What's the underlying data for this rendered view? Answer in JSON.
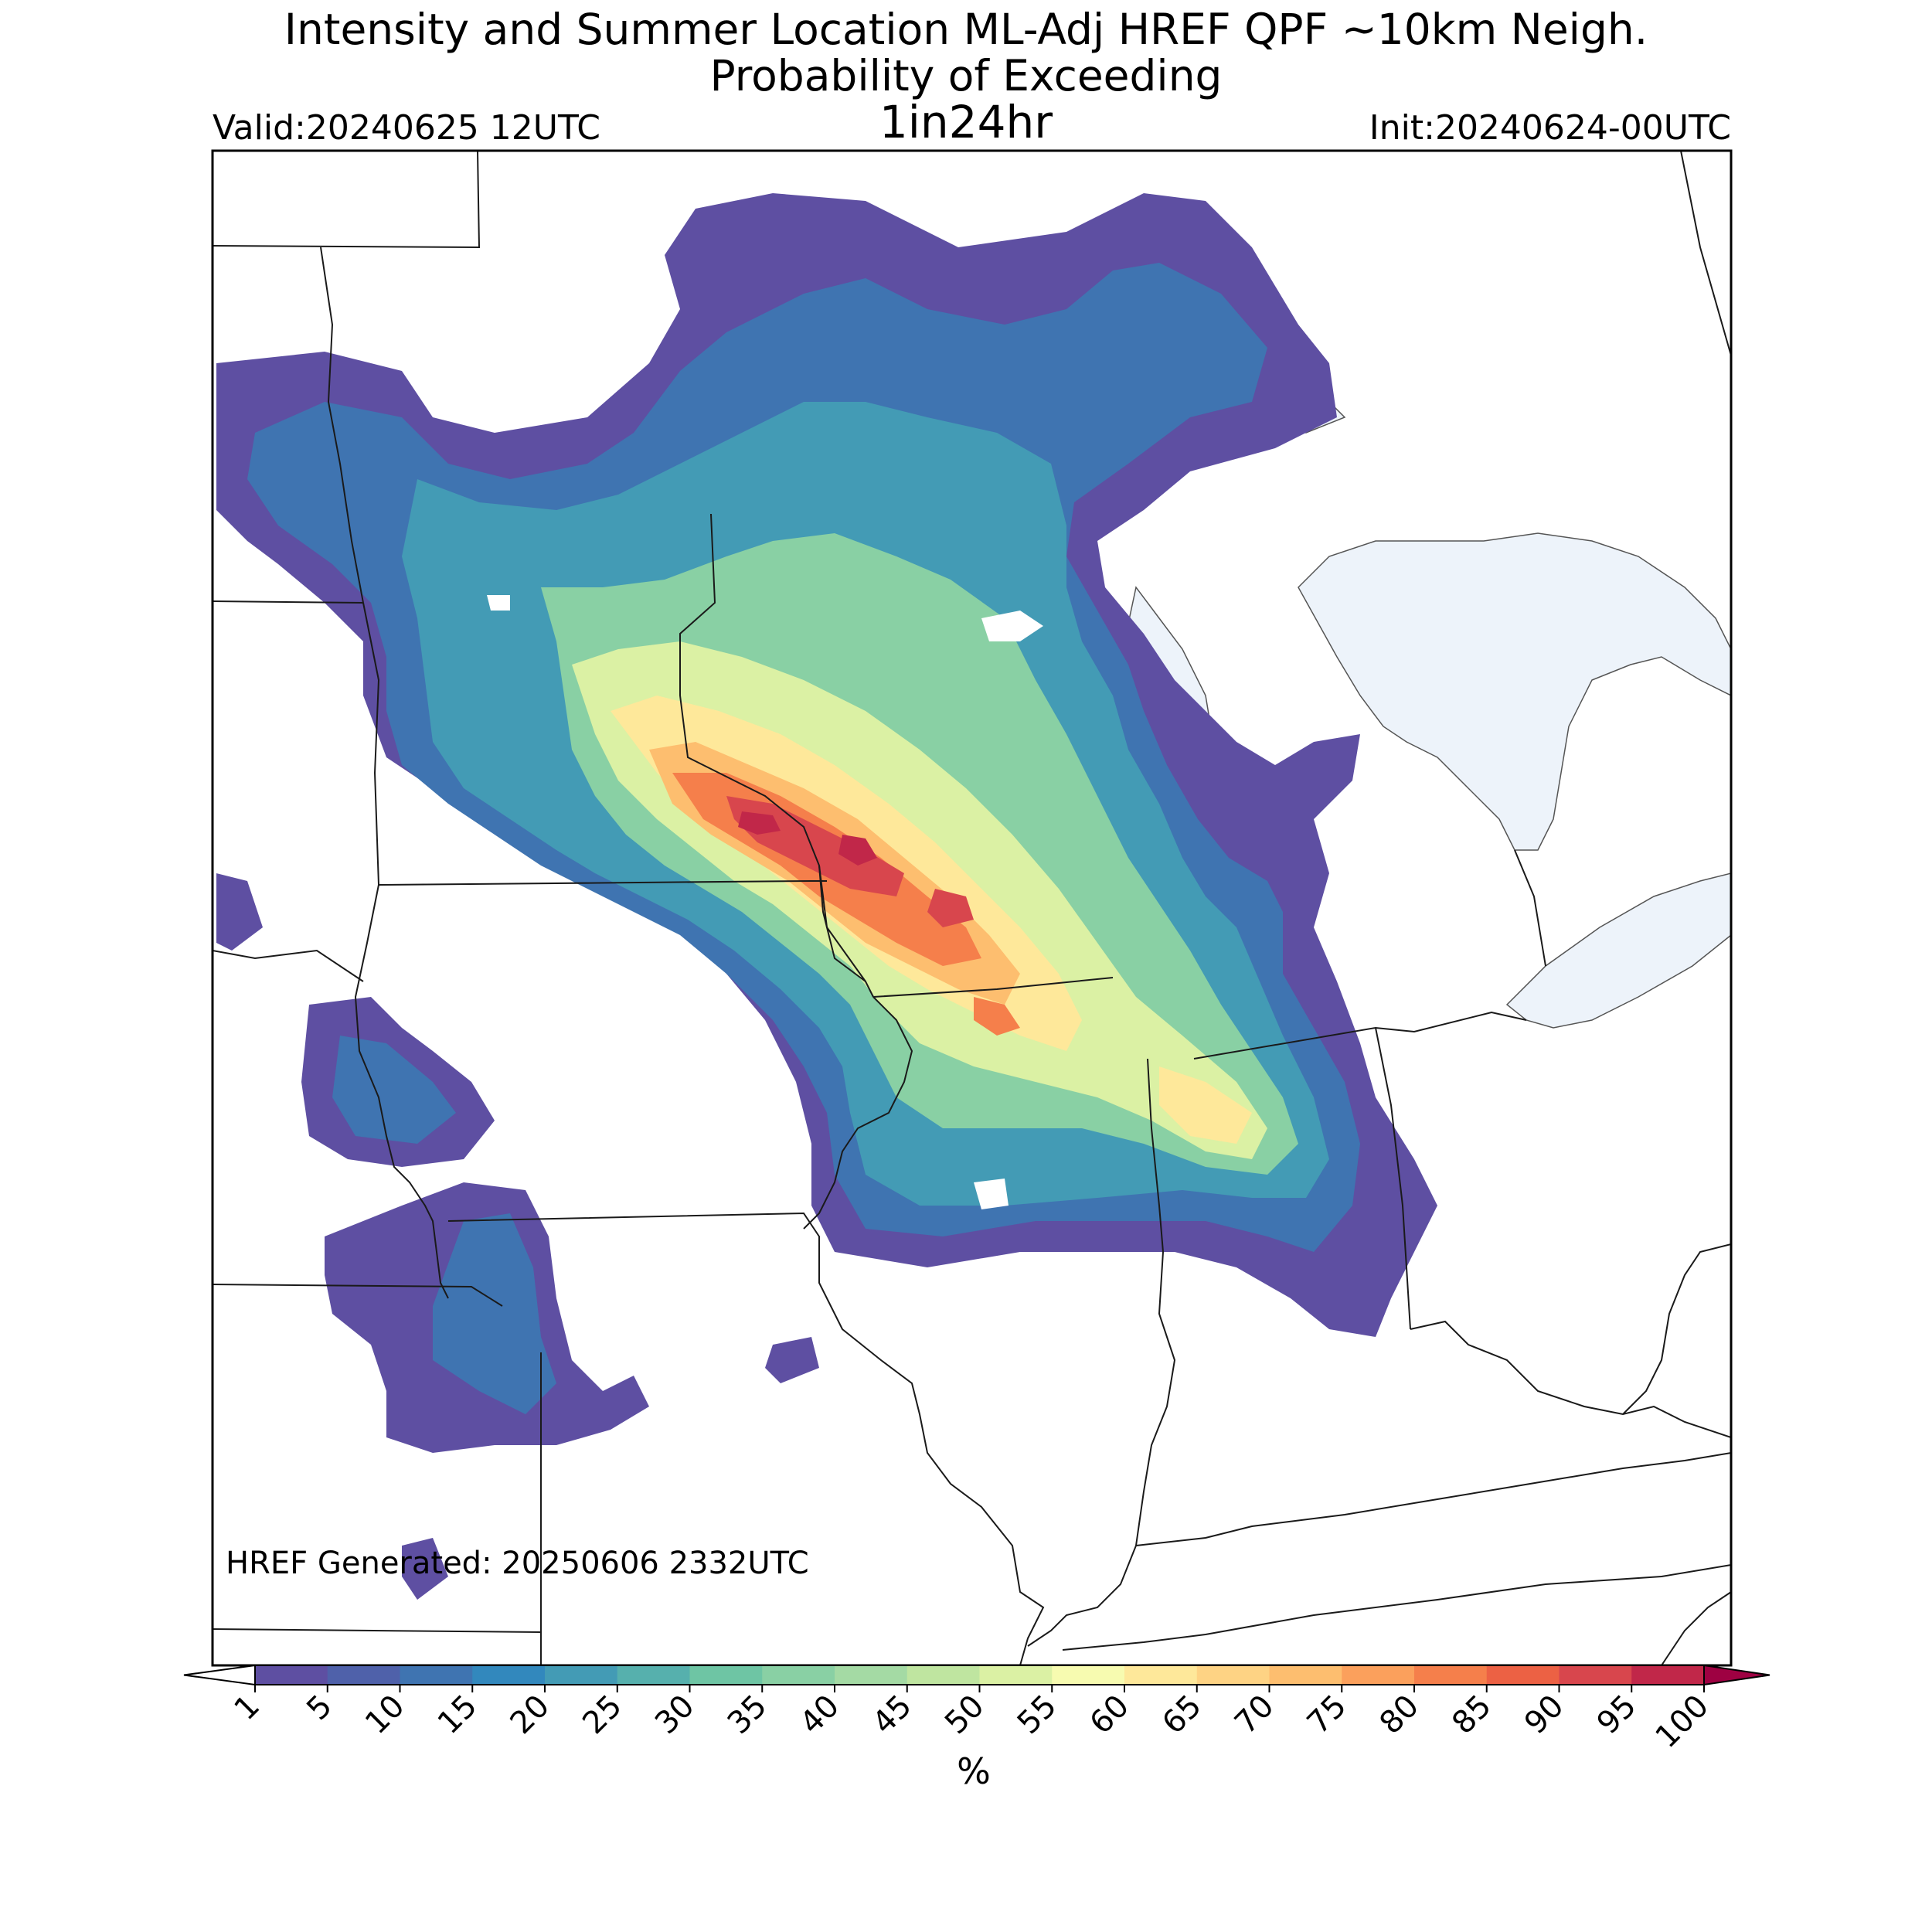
{
  "header": {
    "title_line1": "Intensity and Summer Location ML-Adj HREF QPF ~10km Neigh.",
    "title_line2": "Probability of Exceeding",
    "threshold": "1in24hr",
    "valid": "Valid:20240625 12UTC",
    "init": "Init:20240624-00UTC"
  },
  "footer": {
    "generated": "HREF Generated: 20250606 2332UTC"
  },
  "colorbar": {
    "unit": "%",
    "ticks": [
      "1",
      "5",
      "10",
      "15",
      "20",
      "25",
      "30",
      "35",
      "40",
      "45",
      "50",
      "55",
      "60",
      "65",
      "70",
      "75",
      "80",
      "85",
      "90",
      "95",
      "100"
    ],
    "colors": [
      "#5e4fa2",
      "#4f61aa",
      "#3f74b1",
      "#3288bd",
      "#439bb5",
      "#56b0ad",
      "#6ec5a4",
      "#89d0a4",
      "#a4daa4",
      "#bfe5a0",
      "#dbf1a4",
      "#f7fbb0",
      "#fee89a",
      "#fed384",
      "#fdbe6f",
      "#fba05c",
      "#f57f4b",
      "#ec6144",
      "#d8464d",
      "#c12749",
      "#9e0142"
    ],
    "under_color": "#ffffff",
    "over_color": "#9e0142"
  },
  "map": {
    "water_color": "#edf3fa",
    "probability_areas": [
      {
        "value": 3,
        "color": "#5e4fa2"
      },
      {
        "value": 12,
        "color": "#3f74b1"
      },
      {
        "value": 22,
        "color": "#439bb5"
      },
      {
        "value": 33,
        "color": "#89d0a4"
      },
      {
        "value": 45,
        "color": "#dbf1a4"
      },
      {
        "value": 58,
        "color": "#fee89a"
      },
      {
        "value": 67,
        "color": "#fdbe6f"
      },
      {
        "value": 75,
        "color": "#f57f4b"
      },
      {
        "value": 82,
        "color": "#d8464d"
      },
      {
        "value": 90,
        "color": "#c12749"
      }
    ]
  }
}
